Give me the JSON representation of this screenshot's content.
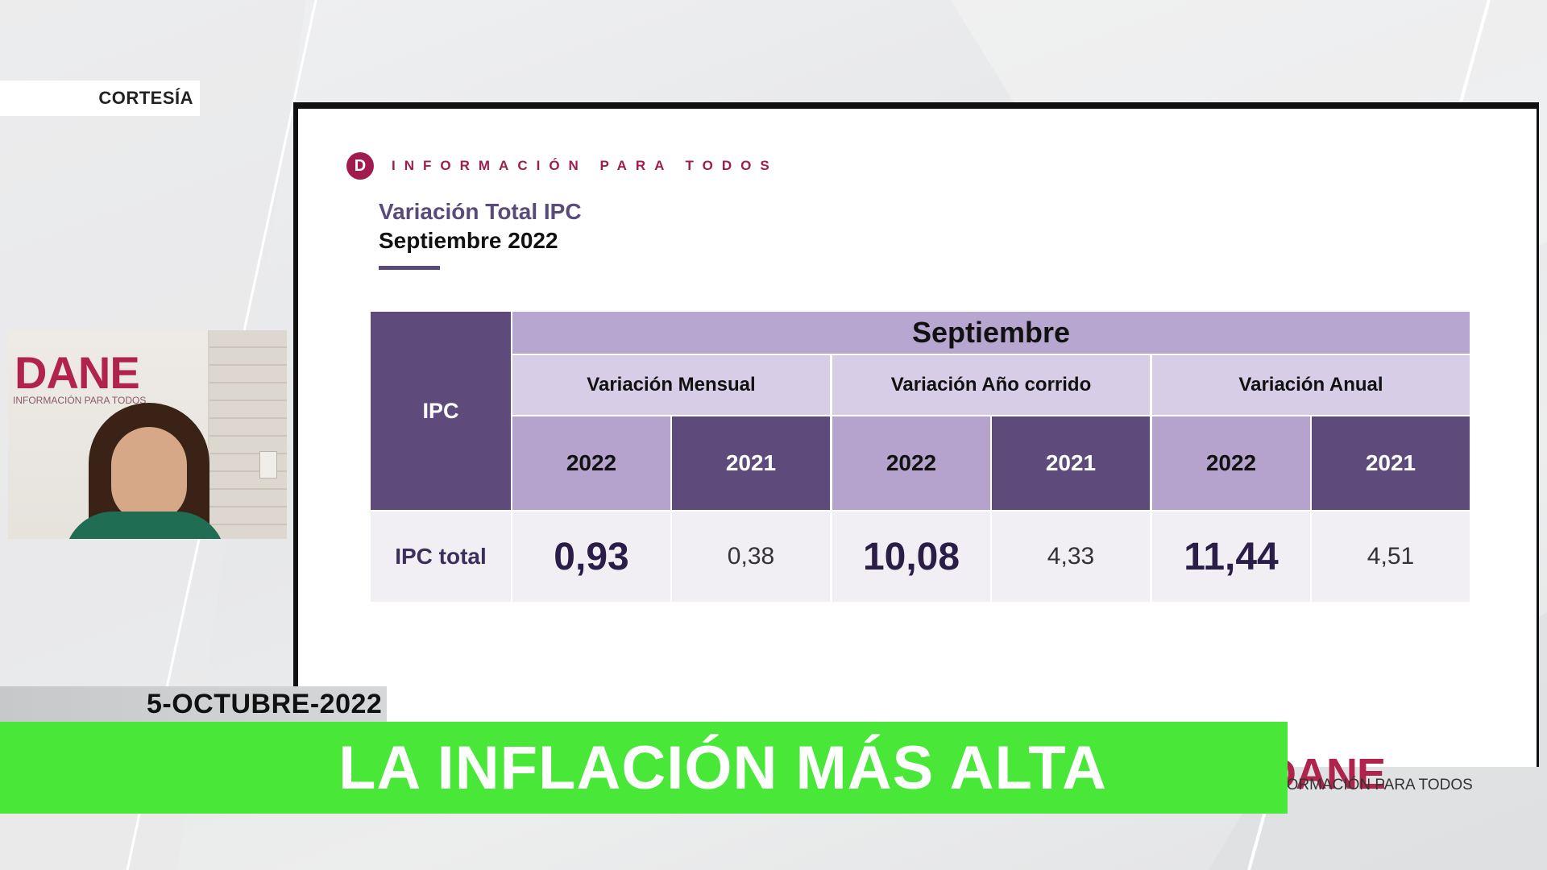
{
  "broadcast": {
    "credit": "CORTESÍA",
    "date": "5-OCTUBRE-2022",
    "headline": "LA INFLACIÓN MÁS ALTA",
    "corner_logo": "DANE",
    "corner_logo_sub": "INFORMACIÓN PARA TODOS"
  },
  "webcam": {
    "logo": "DANE",
    "logo_sub": "INFORMACIÓN PARA TODOS"
  },
  "slide": {
    "logo_letter": "D",
    "tagline": "INFORMACIÓN PARA TODOS",
    "title": "Variación Total IPC",
    "subtitle": "Septiembre 2022",
    "table": {
      "row_header": "IPC",
      "month_header": "Septiembre",
      "groups": [
        "Variación Mensual",
        "Variación Año corrido",
        "Variación Anual"
      ],
      "years": [
        "2022",
        "2021",
        "2022",
        "2021",
        "2022",
        "2021"
      ],
      "row_label": "IPC total",
      "values": [
        "0,93",
        "0,38",
        "10,08",
        "4,33",
        "11,44",
        "4,51"
      ]
    }
  },
  "colors": {
    "headline_bar": "#49e838",
    "table_dark": "#5e4b7b",
    "table_light": "#b5a3cd",
    "dane_red": "#a11c4e"
  }
}
